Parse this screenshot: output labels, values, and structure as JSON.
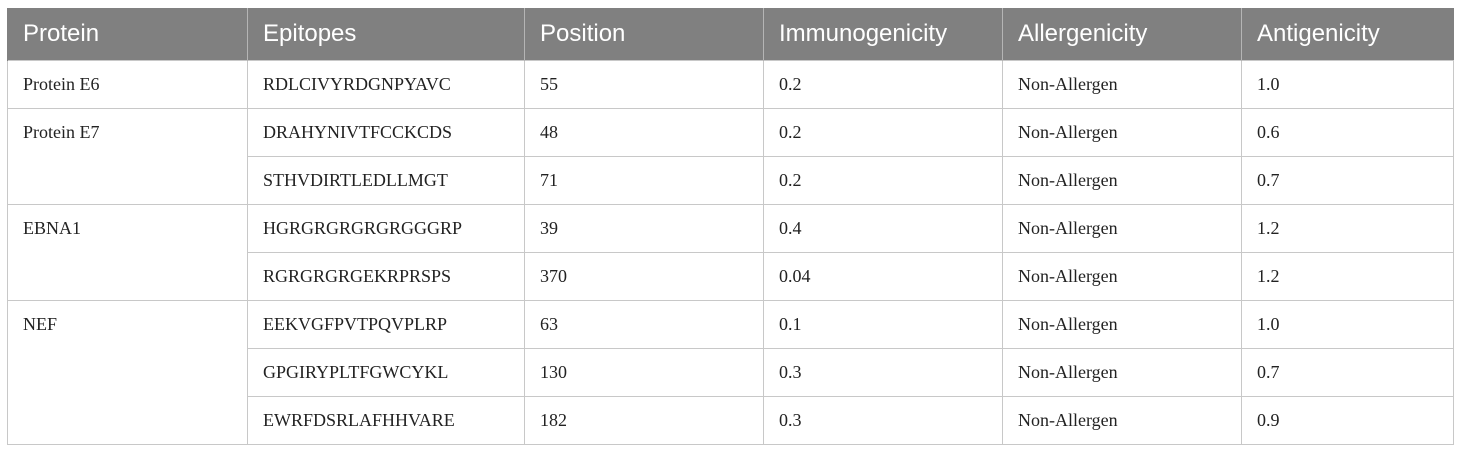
{
  "table": {
    "headers": [
      "Protein",
      "Epitopes",
      "Position",
      "Immunogenicity",
      "Allergenicity",
      "Antigenicity"
    ],
    "groups": [
      {
        "protein": "Protein E6",
        "rows": [
          {
            "epitope": "RDLCIVYRDGNPYAVC",
            "position": "55",
            "immunogenicity": "0.2",
            "allergenicity": "Non-Allergen",
            "antigenicity": "1.0"
          }
        ]
      },
      {
        "protein": "Protein E7",
        "rows": [
          {
            "epitope": "DRAHYNIVTFCCKCDS",
            "position": "48",
            "immunogenicity": "0.2",
            "allergenicity": "Non-Allergen",
            "antigenicity": "0.6"
          },
          {
            "epitope": "STHVDIRTLEDLLMGT",
            "position": "71",
            "immunogenicity": "0.2",
            "allergenicity": "Non-Allergen",
            "antigenicity": "0.7"
          }
        ]
      },
      {
        "protein": "EBNA1",
        "rows": [
          {
            "epitope": "HGRGRGRGRGRGGGRP",
            "position": "39",
            "immunogenicity": "0.4",
            "allergenicity": "Non-Allergen",
            "antigenicity": "1.2"
          },
          {
            "epitope": "RGRGRGRGEKRPRSPS",
            "position": "370",
            "immunogenicity": "0.04",
            "allergenicity": "Non-Allergen",
            "antigenicity": "1.2"
          }
        ]
      },
      {
        "protein": "NEF",
        "rows": [
          {
            "epitope": "EEKVGFPVTPQVPLRP",
            "position": "63",
            "immunogenicity": "0.1",
            "allergenicity": "Non-Allergen",
            "antigenicity": "1.0"
          },
          {
            "epitope": "GPGIRYPLTFGWCYKL",
            "position": "130",
            "immunogenicity": "0.3",
            "allergenicity": "Non-Allergen",
            "antigenicity": "0.7"
          },
          {
            "epitope": "EWRFDSRLAFHHVARE",
            "position": "182",
            "immunogenicity": "0.3",
            "allergenicity": "Non-Allergen",
            "antigenicity": "0.9"
          }
        ]
      }
    ]
  }
}
